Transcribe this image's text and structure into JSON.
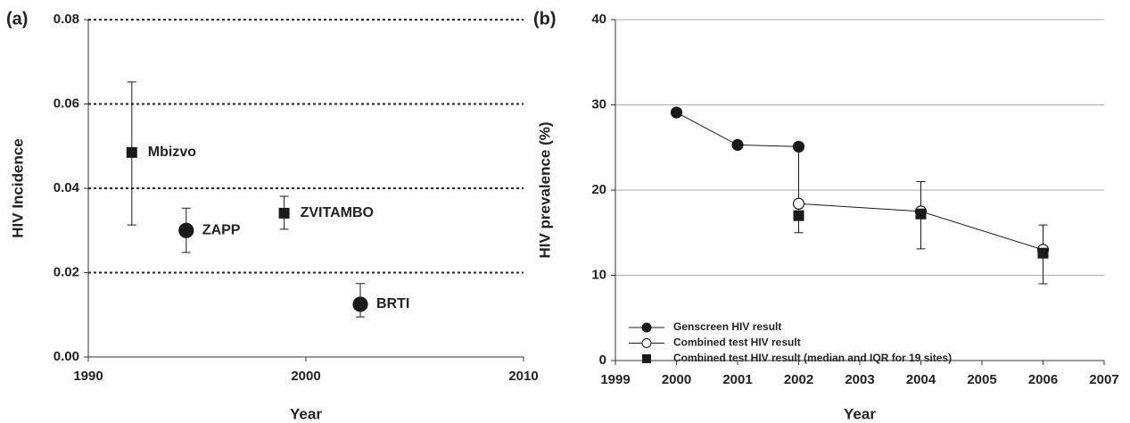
{
  "chart_data": [
    {
      "type": "scatter",
      "panel_label": "(a)",
      "y_label": "HIV Incidence",
      "x_label": "Year",
      "color": "#1a1a1a",
      "xlim": [
        1990,
        2010
      ],
      "xticks": [
        1990,
        2000,
        2010
      ],
      "ylim": [
        0,
        0.08
      ],
      "yticks": [
        {
          "value": 0,
          "label": "0.00"
        },
        {
          "value": 0.02,
          "label": "0.02"
        },
        {
          "value": 0.04,
          "label": "0.04"
        },
        {
          "value": 0.06,
          "label": "0.06"
        },
        {
          "value": 0.08,
          "label": "0.08"
        }
      ],
      "grid": "dotted",
      "points": [
        {
          "label": "Mbizvo",
          "marker": "square",
          "x": 1992,
          "y": 0.0485,
          "lower": 0.0313,
          "upper": 0.0652
        },
        {
          "label": "ZAPP",
          "marker": "circle",
          "x": 1994.5,
          "y": 0.03,
          "lower": 0.0248,
          "upper": 0.0353
        },
        {
          "label": "ZVITAMBO",
          "marker": "square",
          "x": 1999,
          "y": 0.0341,
          "lower": 0.0303,
          "upper": 0.0381
        },
        {
          "label": "BRTI",
          "marker": "circle",
          "x": 2002.5,
          "y": 0.0125,
          "lower": 0.0095,
          "upper": 0.0174
        }
      ]
    },
    {
      "type": "line",
      "panel_label": "(b)",
      "y_label": "HIV prevalence (%)",
      "x_label": "Year",
      "color": "#1a1a1a",
      "xlim": [
        1999,
        2007
      ],
      "xticks": [
        1999,
        2000,
        2001,
        2002,
        2003,
        2004,
        2005,
        2006,
        2007
      ],
      "ylim": [
        0,
        40
      ],
      "yticks": [
        0,
        10,
        20,
        30,
        40
      ],
      "grid": "solid",
      "legend": "lower left",
      "series": [
        {
          "name": "Genscreen HIV result",
          "marker": "filled-circle",
          "line": true,
          "x": [
            2000,
            2001,
            2002
          ],
          "values": [
            29.1,
            25.3,
            25.1
          ]
        },
        {
          "name": "Combined test HIV result",
          "marker": "open-circle",
          "line": true,
          "x": [
            2002,
            2004,
            2006
          ],
          "values": [
            18.4,
            17.5,
            13.0
          ]
        },
        {
          "name": "Combined test HIV result (median and IQR for 19 sites)",
          "marker": "square",
          "line": false,
          "x": [
            2002,
            2004,
            2006
          ],
          "values": [
            17.0,
            17.2,
            12.6
          ],
          "lower": [
            15.0,
            13.1,
            9.0
          ],
          "upper": [
            25.1,
            21.0,
            15.9
          ]
        }
      ]
    }
  ]
}
